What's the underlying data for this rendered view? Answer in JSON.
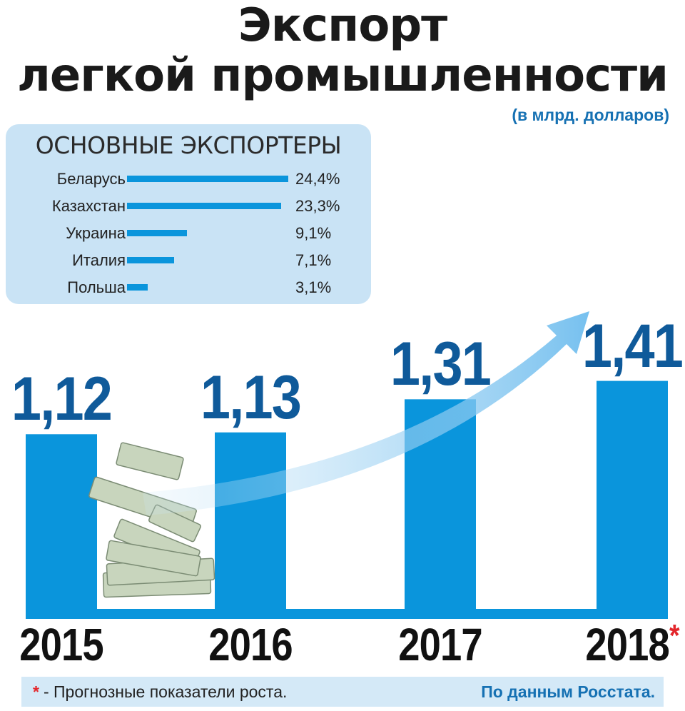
{
  "header": {
    "title_line1": "Экспорт",
    "title_line2": "легкой промышленности",
    "subtitle": "(в млрд. долларов)"
  },
  "inset": {
    "title": "ОСНОВНЫЕ ЭКСПОРТЕРЫ",
    "exporters": [
      {
        "name": "Беларусь",
        "share_label": "24,4%",
        "share": 24.4
      },
      {
        "name": "Казахстан",
        "share_label": "23,3%",
        "share": 23.3
      },
      {
        "name": "Украина",
        "share_label": "9,1%",
        "share": 9.1
      },
      {
        "name": "Италия",
        "share_label": "7,1%",
        "share": 7.1
      },
      {
        "name": "Польша",
        "share_label": "3,1%",
        "share": 3.1
      }
    ]
  },
  "chart_data": {
    "type": "bar",
    "categories": [
      "2015",
      "2016",
      "2017",
      "2018"
    ],
    "values": [
      1.12,
      1.13,
      1.31,
      1.41
    ],
    "value_labels": [
      "1,12",
      "1,13",
      "1,31",
      "1,41"
    ],
    "forecast_marker": "*",
    "bar_color": "#0a95dc",
    "value_color": "#0f5a9a",
    "grid": false,
    "legend": "none"
  },
  "footer": {
    "asterisk": "*",
    "note": "- Прогнозные показатели роста.",
    "source": "По данным Росстата."
  },
  "colors": {
    "accent": "#0a95dc",
    "inset_bg": "#c9e3f5",
    "footer_bg": "#d4e9f7",
    "forecast_mark": "#e3262b"
  }
}
